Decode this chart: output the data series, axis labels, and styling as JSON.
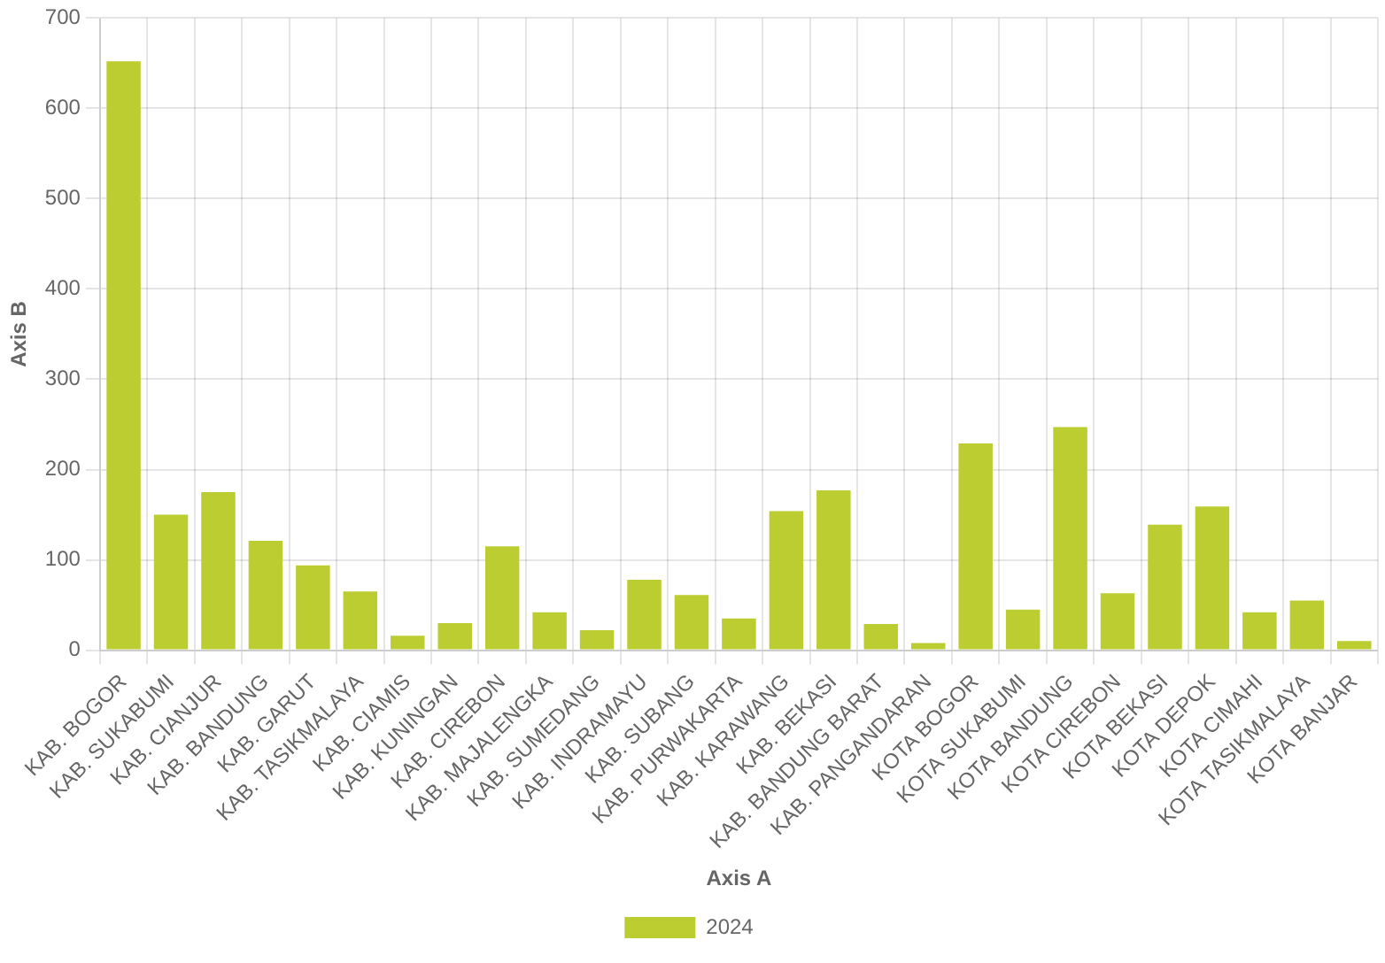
{
  "chart_data": {
    "type": "bar",
    "xlabel": "Axis A",
    "ylabel": "Axis B",
    "categories": [
      "KAB. BOGOR",
      "KAB. SUKABUMI",
      "KAB. CIANJUR",
      "KAB. BANDUNG",
      "KAB. GARUT",
      "KAB. TASIKMALAYA",
      "KAB. CIAMIS",
      "KAB. KUNINGAN",
      "KAB. CIREBON",
      "KAB. MAJALENGKA",
      "KAB. SUMEDANG",
      "KAB. INDRAMAYU",
      "KAB. SUBANG",
      "KAB. PURWAKARTA",
      "KAB. KARAWANG",
      "KAB. BEKASI",
      "KAB. BANDUNG BARAT",
      "KAB. PANGANDARAN",
      "KOTA BOGOR",
      "KOTA SUKABUMI",
      "KOTA BANDUNG",
      "KOTA CIREBON",
      "KOTA BEKASI",
      "KOTA DEPOK",
      "KOTA CIMAHI",
      "KOTA TASIKMALAYA",
      "KOTA BANJAR"
    ],
    "series": [
      {
        "name": "2024",
        "color": "#bccd32",
        "values": [
          652,
          150,
          175,
          121,
          94,
          65,
          16,
          30,
          115,
          42,
          22,
          78,
          61,
          35,
          154,
          177,
          29,
          8,
          229,
          45,
          247,
          63,
          139,
          159,
          42,
          55,
          10
        ]
      }
    ],
    "ylim": [
      0,
      700
    ],
    "yticks": [
      0,
      100,
      200,
      300,
      400,
      500,
      600,
      700
    ],
    "grid": true,
    "legend": "bottom"
  }
}
